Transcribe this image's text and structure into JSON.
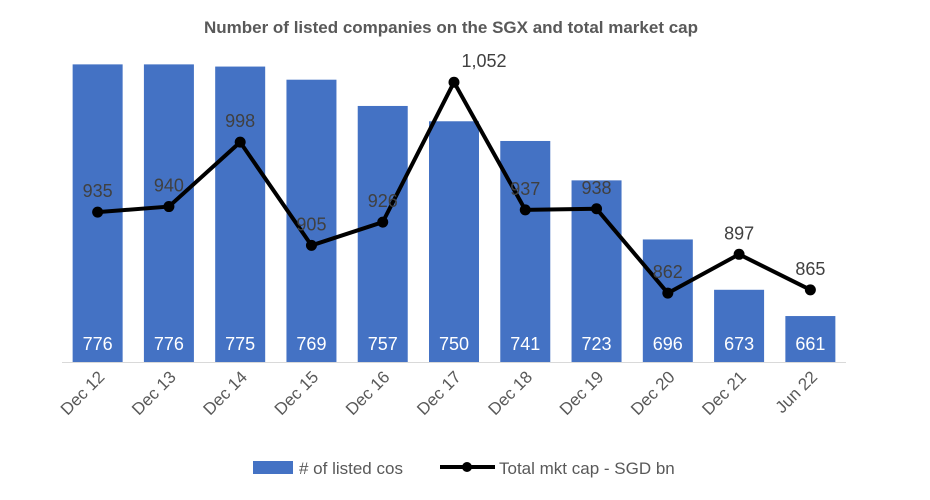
{
  "chart_data": {
    "type": "bar",
    "title": "Number of listed companies on the SGX and total market cap",
    "categories": [
      "Dec 12",
      "Dec 13",
      "Dec 14",
      "Dec 15",
      "Dec 16",
      "Dec 17",
      "Dec 18",
      "Dec 19",
      "Dec 20",
      "Dec 21",
      "Jun 22"
    ],
    "series": [
      {
        "name": "# of listed cos",
        "type": "bar",
        "axis": "primary",
        "values": [
          776,
          776,
          775,
          769,
          757,
          750,
          741,
          723,
          696,
          673,
          661
        ],
        "labels": [
          "776",
          "776",
          "775",
          "769",
          "757",
          "750",
          "741",
          "723",
          "696",
          "673",
          "661"
        ],
        "color": "#4472c4"
      },
      {
        "name": "Total mkt cap - SGD bn",
        "type": "line",
        "axis": "secondary",
        "values": [
          935,
          940,
          998,
          905,
          926,
          1052,
          937,
          938,
          862,
          897,
          865
        ],
        "labels": [
          "935",
          "940",
          "998",
          "905",
          "926",
          "1,052",
          "937",
          "938",
          "862",
          "897",
          "865"
        ],
        "color": "#000000"
      }
    ],
    "primary_ylim": [
      640,
      778
    ],
    "secondary_ylim": [
      800,
      1072
    ],
    "xlabel": "",
    "ylabel": "",
    "grid": false,
    "legend": "bottom"
  }
}
